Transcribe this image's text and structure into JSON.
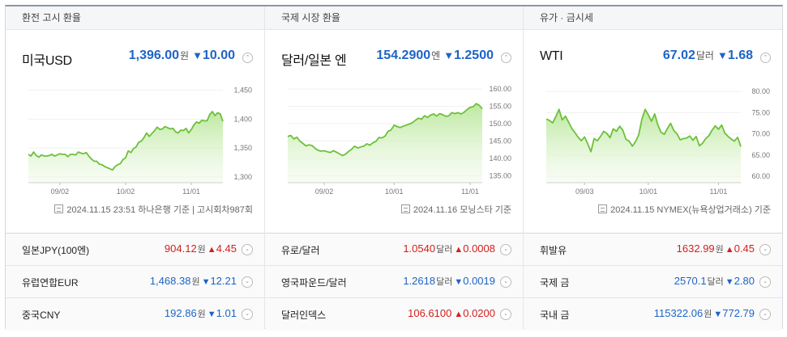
{
  "panels": [
    {
      "header": "환전 고시 환율",
      "name": "미국USD",
      "price": "1,396.00",
      "unit": "원",
      "delta_dir": "down",
      "delta": "10.00",
      "source": "2024.11.15 23:51 하나은행 기준 | 고시회차987회",
      "chart_data": {
        "type": "area",
        "y_ticks": [
          "1,450",
          "1,400",
          "1,350",
          "1,300"
        ],
        "ylim": [
          1290,
          1455
        ],
        "x_ticks": [
          "09/02",
          "10/02",
          "11/01"
        ],
        "x_tick_index": [
          12,
          37,
          62
        ],
        "values": [
          1339,
          1336,
          1343,
          1337,
          1334,
          1338,
          1336,
          1336,
          1337,
          1339,
          1336,
          1338,
          1340,
          1339,
          1339,
          1335,
          1339,
          1339,
          1338,
          1343,
          1341,
          1340,
          1342,
          1336,
          1331,
          1327,
          1327,
          1322,
          1321,
          1318,
          1316,
          1314,
          1312,
          1318,
          1321,
          1323,
          1330,
          1333,
          1345,
          1342,
          1349,
          1352,
          1360,
          1362,
          1368,
          1376,
          1370,
          1375,
          1380,
          1386,
          1382,
          1383,
          1387,
          1385,
          1383,
          1384,
          1378,
          1376,
          1381,
          1380,
          1384,
          1376,
          1382,
          1390,
          1395,
          1393,
          1398,
          1397,
          1397,
          1408,
          1413,
          1406,
          1411,
          1409,
          1396
        ]
      }
    },
    {
      "header": "국제 시장 환율",
      "name": "달러/일본 엔",
      "price": "154.2900",
      "unit": "엔",
      "delta_dir": "down",
      "delta": "1.2500",
      "source": "2024.11.16 모닝스타 기준",
      "chart_data": {
        "type": "area",
        "y_ticks": [
          "160.00",
          "155.00",
          "150.00",
          "145.00",
          "140.00",
          "135.00"
        ],
        "ylim": [
          133,
          160.5
        ],
        "x_ticks": [
          "09/02",
          "10/01",
          "11/01"
        ],
        "x_tick_index": [
          12,
          35,
          60
        ],
        "values": [
          146.3,
          146.6,
          145.6,
          146.1,
          145.0,
          144.3,
          143.6,
          143.9,
          143.7,
          142.9,
          142.3,
          142.1,
          142.2,
          141.9,
          141.7,
          142.2,
          141.8,
          141.3,
          140.8,
          141.2,
          142.0,
          142.6,
          143.5,
          143.0,
          143.3,
          143.5,
          144.2,
          143.8,
          144.5,
          144.9,
          146.0,
          145.9,
          146.4,
          147.8,
          148.2,
          149.6,
          149.2,
          148.9,
          149.3,
          149.6,
          149.9,
          150.3,
          151.0,
          151.6,
          151.3,
          152.3,
          151.8,
          152.5,
          152.8,
          152.2,
          152.9,
          152.6,
          152.1,
          152.3,
          153.2,
          152.9,
          153.2,
          152.8,
          153.3,
          154.1,
          154.7,
          154.9,
          155.8,
          155.3,
          154.29
        ]
      }
    },
    {
      "header": "유가 · 금시세",
      "name": "WTI",
      "price": "67.02",
      "unit": "달러",
      "delta_dir": "down",
      "delta": "1.68",
      "source": "2024.11.15 NYMEX(뉴욕상업거래소) 기준",
      "chart_data": {
        "type": "area",
        "y_ticks": [
          "80.00",
          "75.00",
          "70.00",
          "65.00",
          "60.00"
        ],
        "ylim": [
          58.5,
          81
        ],
        "x_ticks": [
          "09/03",
          "10/01",
          "11/01"
        ],
        "x_tick_index": [
          12,
          32,
          54
        ],
        "values": [
          73.5,
          73.2,
          72.6,
          74.1,
          75.8,
          73.3,
          74.2,
          72.8,
          71.3,
          70.3,
          69.2,
          68.4,
          69.3,
          67.7,
          65.8,
          68.9,
          68.4,
          69.4,
          70.6,
          70.1,
          69.1,
          71.2,
          70.6,
          71.8,
          70.9,
          68.7,
          68.3,
          67.1,
          68.2,
          69.8,
          73.5,
          75.8,
          74.5,
          73.0,
          74.7,
          72.1,
          70.4,
          69.9,
          71.3,
          72.5,
          70.8,
          70.0,
          68.6,
          68.9,
          69.0,
          69.5,
          68.5,
          69.4,
          67.2,
          67.8,
          68.9,
          69.6,
          70.9,
          71.9,
          71.1,
          72.1,
          70.2,
          69.4,
          68.8,
          68.3,
          69.2,
          67.02
        ]
      }
    }
  ],
  "rows": [
    [
      {
        "name": "일본JPY(100엔)",
        "price": "904.12",
        "unit": "원",
        "dir": "up",
        "delta": "4.45"
      },
      {
        "name": "유럽연합EUR",
        "price": "1,468.38",
        "unit": "원",
        "dir": "down",
        "delta": "12.21"
      },
      {
        "name": "중국CNY",
        "price": "192.86",
        "unit": "원",
        "dir": "down",
        "delta": "1.01"
      }
    ],
    [
      {
        "name": "유로/달러",
        "price": "1.0540",
        "unit": "달러",
        "dir": "up",
        "delta": "0.0008"
      },
      {
        "name": "영국파운드/달러",
        "price": "1.2618",
        "unit": "달러",
        "dir": "down",
        "delta": "0.0019"
      },
      {
        "name": "달러인덱스",
        "price": "106.6100",
        "unit": "",
        "dir": "up",
        "delta": "0.0200"
      }
    ],
    [
      {
        "name": "휘발유",
        "price": "1632.99",
        "unit": "원",
        "dir": "up",
        "delta": "0.45"
      },
      {
        "name": "국제 금",
        "price": "2570.1",
        "unit": "달러",
        "dir": "down",
        "delta": "2.80"
      },
      {
        "name": "국내 금",
        "price": "115322.06",
        "unit": "원",
        "dir": "down",
        "delta": "772.79"
      }
    ]
  ],
  "glyphs": {
    "down": "▼",
    "up": "▲",
    "chevron": "⌄",
    "caret_up": "⌃"
  }
}
